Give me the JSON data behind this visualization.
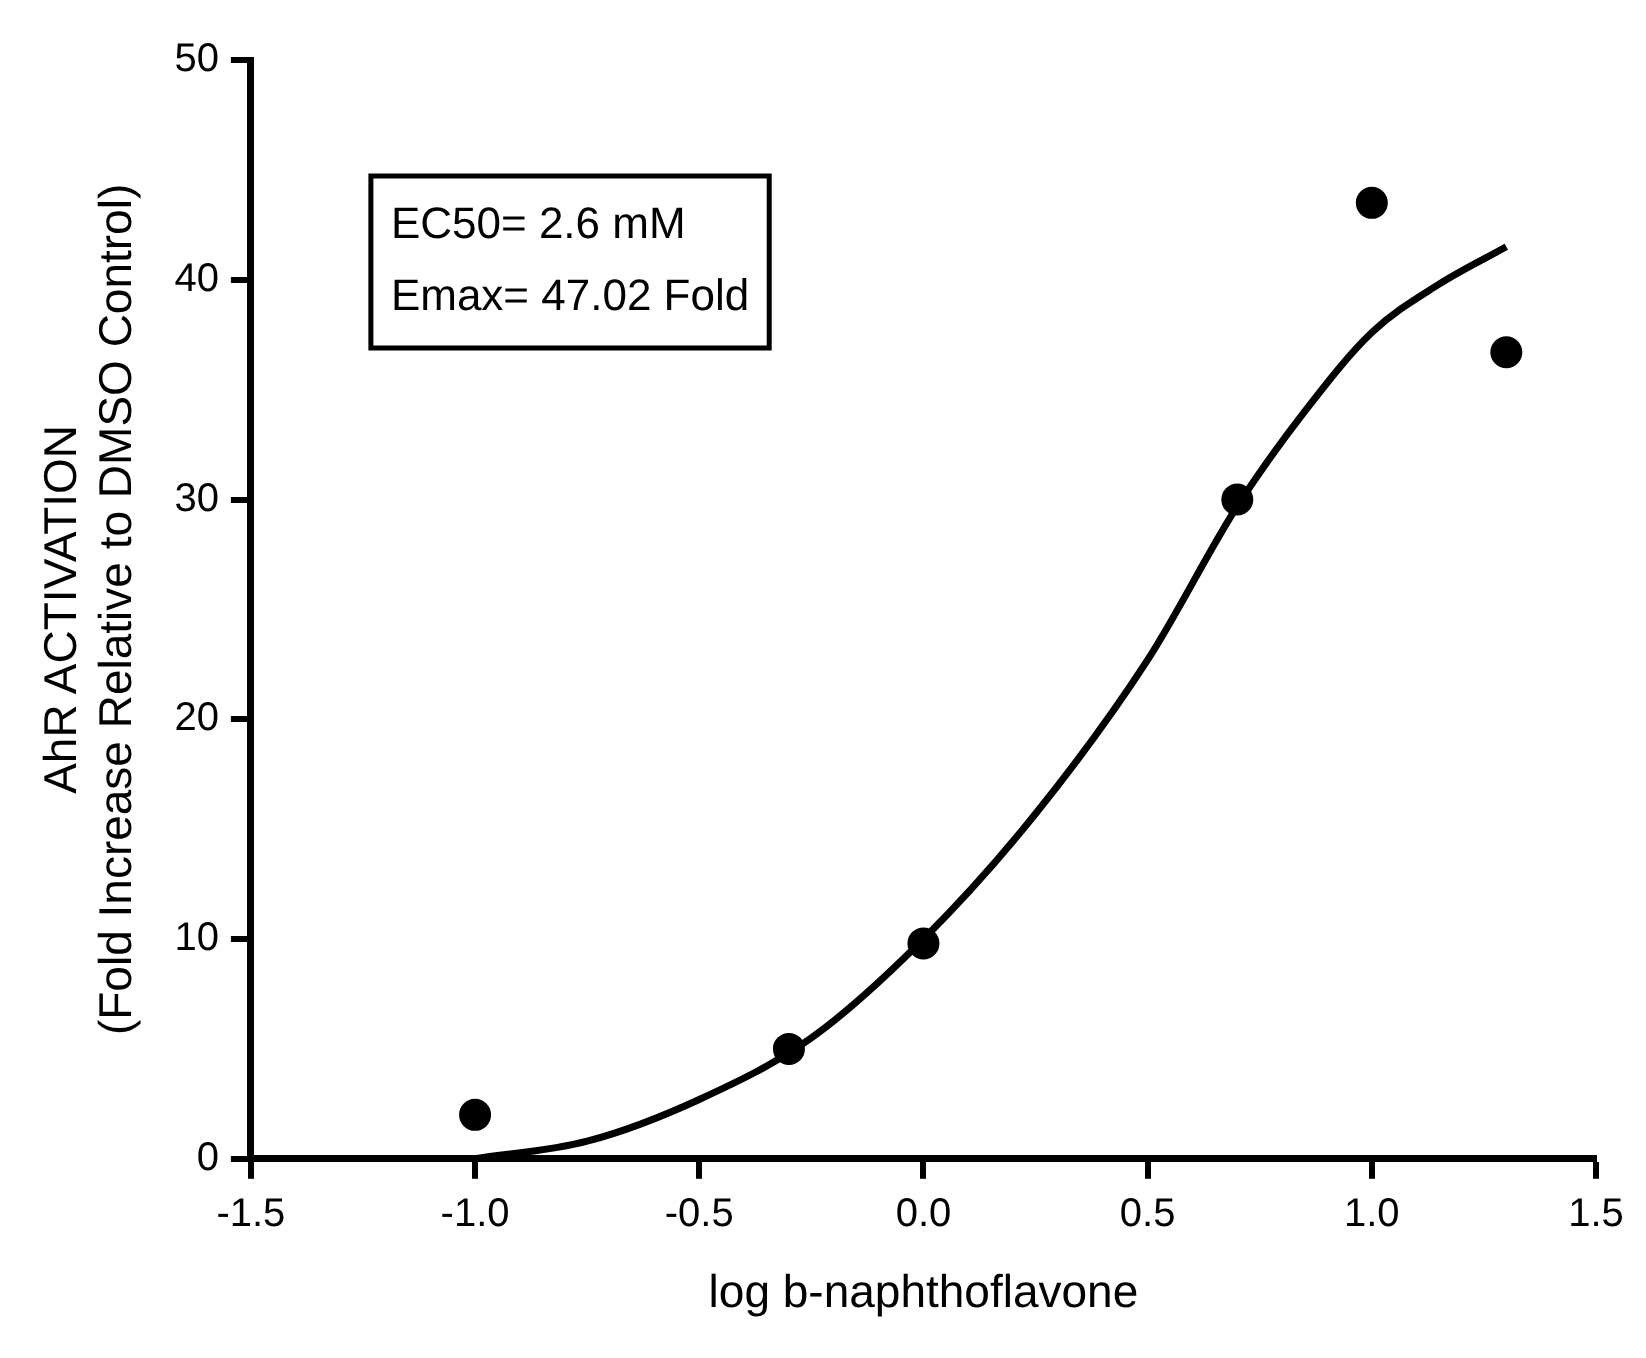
{
  "chart_data": {
    "type": "scatter",
    "xlabel": "log b-naphthoflavone",
    "ylabel": "AhR ACTIVATION\n(Fold Increase Relative to DMSO Control)",
    "xlim": [
      -1.5,
      1.5
    ],
    "xticks": [
      {
        "value": -1.5,
        "label": "-1.5"
      },
      {
        "value": -1,
        "label": "-1.0"
      },
      {
        "value": -0.5,
        "label": "-0.5"
      },
      {
        "value": 0,
        "label": "0.0"
      },
      {
        "value": 0.5,
        "label": "0.5"
      },
      {
        "value": 1,
        "label": "1.0"
      },
      {
        "value": 1.5,
        "label": "1.5"
      }
    ],
    "ylim": [
      0,
      50
    ],
    "yticks": [
      0,
      10,
      20,
      30,
      40,
      50
    ],
    "grid": false,
    "legend": false,
    "annotations": [
      "EC50= 2.6 mM",
      "Emax= 47.02 Fold"
    ],
    "series": [
      {
        "type": "scatter",
        "color": "#000000",
        "marker": "circle",
        "x": [
          -1,
          -0.3,
          0,
          0.7,
          1,
          1.3
        ],
        "values": [
          2,
          5,
          9.8,
          30,
          43.5,
          36.7
        ]
      },
      {
        "type": "line",
        "color": "#000000",
        "marker": "none",
        "line_style": "solid",
        "x": [
          -1,
          -0.75,
          -0.5,
          -0.25,
          0,
          0.25,
          0.5,
          0.7,
          0.85,
          1,
          1.15,
          1.3
        ],
        "values": [
          0,
          0.8,
          2.7,
          5.5,
          10,
          15.7,
          22.7,
          29.7,
          34,
          37.6,
          39.8,
          41.5
        ]
      }
    ]
  }
}
